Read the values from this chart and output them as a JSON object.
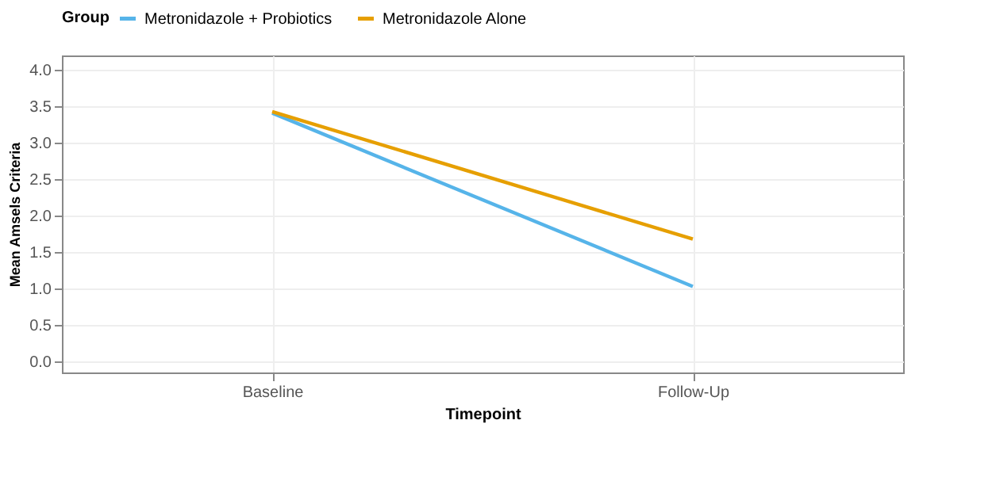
{
  "chart_data": {
    "type": "line",
    "xlabel": "Timepoint",
    "ylabel": "Mean Amsels Criteria",
    "legend_title": "Group",
    "categories": [
      "Baseline",
      "Follow-Up"
    ],
    "series": [
      {
        "name": "Metronidazole + Probiotics",
        "color": "#56b4e9",
        "values": [
          3.41,
          1.03
        ]
      },
      {
        "name": "Metronidazole Alone",
        "color": "#e69f00",
        "values": [
          3.43,
          1.68
        ]
      }
    ],
    "ylim": [
      -0.15,
      4.2
    ],
    "yticks": [
      {
        "value": 0,
        "label": "0.0"
      },
      0.5,
      {
        "value": 1,
        "label": "1.0"
      },
      1.5,
      {
        "value": 2,
        "label": "2.0"
      },
      2.5,
      {
        "value": 3,
        "label": "3.0"
      },
      3.5,
      {
        "value": 4,
        "label": "4.0"
      }
    ],
    "grid": true,
    "legend": "top",
    "marker": "none",
    "line_style": "solid"
  }
}
